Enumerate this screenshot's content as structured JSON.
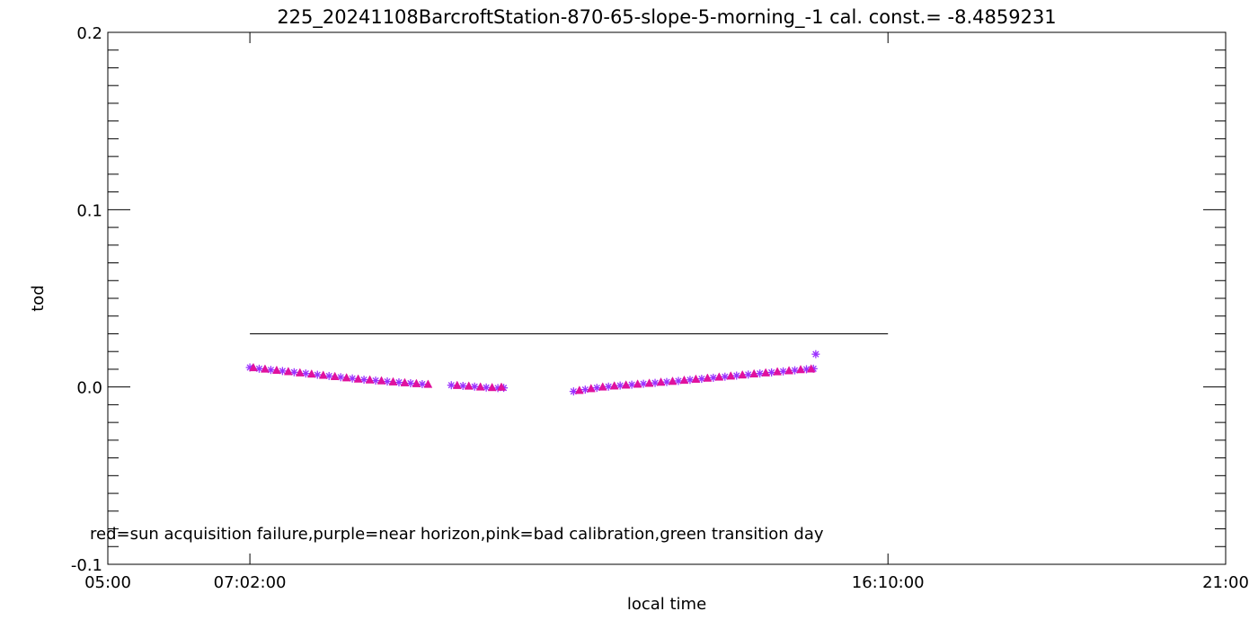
{
  "chart_data": {
    "type": "scatter",
    "title": "225_20241108BarcroftStation-870-65-slope-5-morning_-1 cal. const.= -8.4859231",
    "xlabel": "local time",
    "ylabel": "tod",
    "xlim": [
      "05:00",
      "21:00"
    ],
    "ylim": [
      -0.1,
      0.2
    ],
    "x_tick_labels": [
      "05:00",
      "07:02:00",
      "16:10:00",
      "21:00"
    ],
    "y_tick_labels": [
      "-0.1",
      "0.0",
      "0.1",
      "0.2"
    ],
    "y_ticks": [
      -0.1,
      0.0,
      0.1,
      0.2
    ],
    "annotation": "red=sun acquisition failure,purple=near horizon,pink=bad calibration,green transition day",
    "reference_line": {
      "y": 0.03,
      "x_start": "07:02",
      "x_end": "16:10"
    },
    "series": [
      {
        "color": "#9b30ff",
        "marker": "asterisk",
        "points": [
          [
            "07:02",
            0.011
          ],
          [
            "07:10",
            0.0103
          ],
          [
            "07:20",
            0.0096
          ],
          [
            "07:30",
            0.009
          ],
          [
            "07:40",
            0.0083
          ],
          [
            "07:50",
            0.0076
          ],
          [
            "08:00",
            0.0069
          ],
          [
            "08:10",
            0.0062
          ],
          [
            "08:20",
            0.0055
          ],
          [
            "08:30",
            0.0048
          ],
          [
            "08:40",
            0.0041
          ],
          [
            "08:50",
            0.0036
          ],
          [
            "09:00",
            0.0031
          ],
          [
            "09:10",
            0.0026
          ],
          [
            "09:20",
            0.0021
          ],
          [
            "09:30",
            0.0016
          ],
          [
            "09:55",
            0.001
          ],
          [
            "10:05",
            0.0006
          ],
          [
            "10:15",
            0.0002
          ],
          [
            "10:25",
            -0.0003
          ],
          [
            "10:35",
            -0.0006
          ],
          [
            "10:40",
            -0.0005
          ],
          [
            "11:40",
            -0.0025
          ],
          [
            "11:50",
            -0.0015
          ],
          [
            "12:00",
            -0.0005
          ],
          [
            "12:10",
            0.0002
          ],
          [
            "12:20",
            0.0008
          ],
          [
            "12:30",
            0.0013
          ],
          [
            "12:40",
            0.0018
          ],
          [
            "12:50",
            0.0023
          ],
          [
            "13:00",
            0.0028
          ],
          [
            "13:10",
            0.0034
          ],
          [
            "13:20",
            0.004
          ],
          [
            "13:30",
            0.0046
          ],
          [
            "13:40",
            0.0052
          ],
          [
            "13:50",
            0.0058
          ],
          [
            "14:00",
            0.0064
          ],
          [
            "14:10",
            0.007
          ],
          [
            "14:20",
            0.0076
          ],
          [
            "14:30",
            0.0082
          ],
          [
            "14:40",
            0.0088
          ],
          [
            "14:50",
            0.0094
          ],
          [
            "15:00",
            0.01
          ],
          [
            "15:06",
            0.0103
          ],
          [
            "15:08",
            0.0185
          ]
        ]
      },
      {
        "color": "#e0119d",
        "marker": "triangle",
        "points": [
          [
            "07:05",
            0.0108
          ],
          [
            "07:15",
            0.01
          ],
          [
            "07:25",
            0.0093
          ],
          [
            "07:35",
            0.0086
          ],
          [
            "07:45",
            0.0079
          ],
          [
            "07:55",
            0.0072
          ],
          [
            "08:05",
            0.0065
          ],
          [
            "08:15",
            0.0058
          ],
          [
            "08:25",
            0.0051
          ],
          [
            "08:35",
            0.0044
          ],
          [
            "08:45",
            0.0039
          ],
          [
            "08:55",
            0.0034
          ],
          [
            "09:05",
            0.0028
          ],
          [
            "09:15",
            0.0023
          ],
          [
            "09:25",
            0.0018
          ],
          [
            "09:35",
            0.0014
          ],
          [
            "10:00",
            0.0008
          ],
          [
            "10:10",
            0.0004
          ],
          [
            "10:20",
            -0.0001
          ],
          [
            "10:30",
            -0.0004
          ],
          [
            "10:38",
            -0.0002
          ],
          [
            "11:45",
            -0.002
          ],
          [
            "11:55",
            -0.001
          ],
          [
            "12:05",
            -0.0001
          ],
          [
            "12:15",
            0.0005
          ],
          [
            "12:25",
            0.001
          ],
          [
            "12:35",
            0.0015
          ],
          [
            "12:45",
            0.002
          ],
          [
            "12:55",
            0.0026
          ],
          [
            "13:05",
            0.0031
          ],
          [
            "13:15",
            0.0037
          ],
          [
            "13:25",
            0.0043
          ],
          [
            "13:35",
            0.0049
          ],
          [
            "13:45",
            0.0055
          ],
          [
            "13:55",
            0.0061
          ],
          [
            "14:05",
            0.0067
          ],
          [
            "14:15",
            0.0073
          ],
          [
            "14:25",
            0.0079
          ],
          [
            "14:35",
            0.0085
          ],
          [
            "14:45",
            0.0091
          ],
          [
            "14:55",
            0.0097
          ],
          [
            "15:04",
            0.0101
          ]
        ]
      }
    ]
  }
}
